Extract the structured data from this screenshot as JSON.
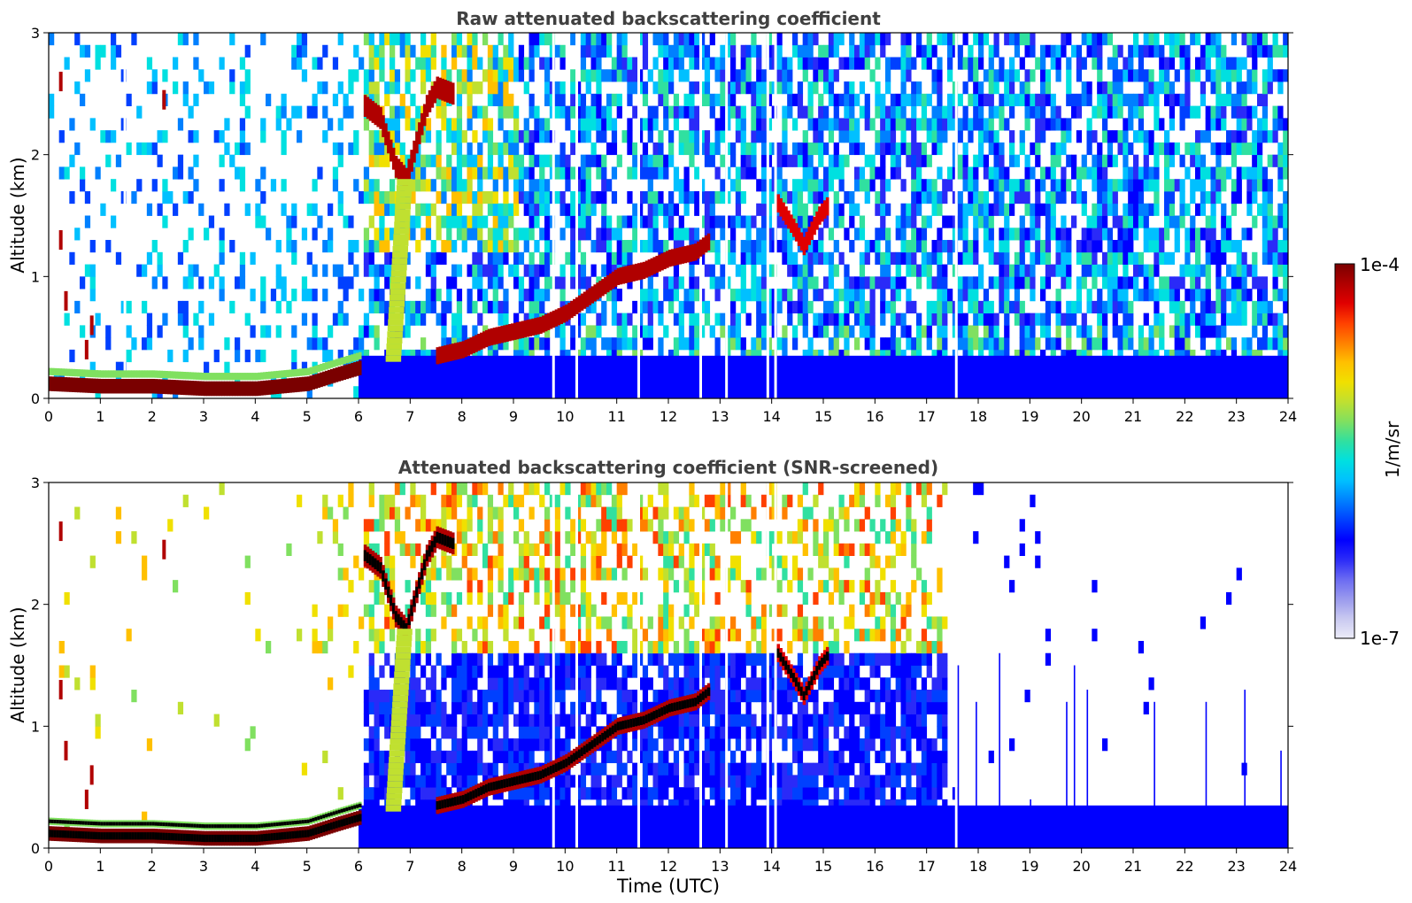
{
  "chart_data": [
    {
      "type": "heatmap",
      "title": "Raw attenuated backscattering coefficient",
      "xlabel": "",
      "ylabel": "Altitude (km)",
      "xlim": [
        0,
        24
      ],
      "ylim": [
        0,
        3
      ],
      "x_ticks": [
        "0",
        "1",
        "2",
        "3",
        "4",
        "5",
        "6",
        "7",
        "8",
        "9",
        "10",
        "11",
        "12",
        "13",
        "14",
        "15",
        "16",
        "17",
        "18",
        "19",
        "20",
        "21",
        "22",
        "23",
        "24"
      ],
      "y_ticks": [
        "0",
        "1",
        "2",
        "3"
      ],
      "features": {
        "boundary_layer": [
          [
            0,
            0.12
          ],
          [
            1,
            0.1
          ],
          [
            2,
            0.1
          ],
          [
            3,
            0.08
          ],
          [
            4,
            0.08
          ],
          [
            5,
            0.12
          ],
          [
            5.6,
            0.2
          ],
          [
            6.0,
            0.25
          ]
        ],
        "cloud_v_left": [
          [
            6.1,
            2.4
          ],
          [
            6.4,
            2.3
          ],
          [
            6.7,
            1.9
          ],
          [
            6.9,
            1.8
          ]
        ],
        "cloud_v_right": [
          [
            6.9,
            1.8
          ],
          [
            7.1,
            2.1
          ],
          [
            7.3,
            2.4
          ],
          [
            7.5,
            2.55
          ],
          [
            7.8,
            2.5
          ]
        ],
        "rising_layer": [
          [
            7.5,
            0.35
          ],
          [
            8.0,
            0.4
          ],
          [
            8.5,
            0.5
          ],
          [
            9.0,
            0.55
          ],
          [
            9.5,
            0.6
          ],
          [
            10.0,
            0.7
          ],
          [
            10.5,
            0.85
          ],
          [
            11.0,
            1.0
          ],
          [
            11.5,
            1.05
          ],
          [
            12.0,
            1.15
          ],
          [
            12.5,
            1.2
          ],
          [
            12.8,
            1.3
          ]
        ],
        "cloud_14_15": [
          [
            14.1,
            1.6
          ],
          [
            14.4,
            1.4
          ],
          [
            14.6,
            1.25
          ],
          [
            14.9,
            1.5
          ],
          [
            15.1,
            1.6
          ]
        ],
        "low_echo_right": [
          [
            16,
            0.25
          ],
          [
            18,
            0.22
          ],
          [
            20,
            0.2
          ],
          [
            22,
            0.22
          ],
          [
            23.5,
            0.3
          ]
        ]
      }
    },
    {
      "type": "heatmap",
      "title": "Attenuated backscattering coefficient (SNR-screened)",
      "xlabel": "Time (UTC)",
      "ylabel": "Altitude (km)",
      "xlim": [
        0,
        24
      ],
      "ylim": [
        0,
        3
      ],
      "x_ticks": [
        "0",
        "1",
        "2",
        "3",
        "4",
        "5",
        "6",
        "7",
        "8",
        "9",
        "10",
        "11",
        "12",
        "13",
        "14",
        "15",
        "16",
        "17",
        "18",
        "19",
        "20",
        "21",
        "22",
        "23",
        "24"
      ],
      "y_ticks": [
        "0",
        "1",
        "2",
        "3"
      ],
      "features": {
        "boundary_layer": [
          [
            0,
            0.12
          ],
          [
            1,
            0.1
          ],
          [
            2,
            0.1
          ],
          [
            3,
            0.08
          ],
          [
            4,
            0.08
          ],
          [
            5,
            0.12
          ],
          [
            5.6,
            0.2
          ],
          [
            6.0,
            0.25
          ]
        ],
        "cloud_v_left": [
          [
            6.1,
            2.4
          ],
          [
            6.4,
            2.3
          ],
          [
            6.7,
            1.9
          ],
          [
            6.9,
            1.8
          ]
        ],
        "cloud_v_right": [
          [
            6.9,
            1.8
          ],
          [
            7.1,
            2.1
          ],
          [
            7.3,
            2.4
          ],
          [
            7.5,
            2.55
          ],
          [
            7.8,
            2.5
          ]
        ],
        "rising_layer": [
          [
            7.5,
            0.35
          ],
          [
            8.0,
            0.4
          ],
          [
            8.5,
            0.5
          ],
          [
            9.0,
            0.55
          ],
          [
            9.5,
            0.6
          ],
          [
            10.0,
            0.7
          ],
          [
            10.5,
            0.85
          ],
          [
            11.0,
            1.0
          ],
          [
            11.5,
            1.05
          ],
          [
            12.0,
            1.15
          ],
          [
            12.5,
            1.2
          ],
          [
            12.8,
            1.3
          ]
        ],
        "cloud_14_15": [
          [
            14.1,
            1.6
          ],
          [
            14.4,
            1.4
          ],
          [
            14.6,
            1.25
          ],
          [
            14.9,
            1.5
          ],
          [
            15.1,
            1.6
          ]
        ],
        "screened_cut_time": 17.35,
        "low_echo_right_height": 0.27
      }
    }
  ],
  "colorbar": {
    "label": "1/m/sr",
    "max_label": "1e-4",
    "min_label": "1e-7",
    "stops": [
      "#ececf8",
      "#c8c8f0",
      "#9a9aee",
      "#6a6af2",
      "#2a2af8",
      "#0000ff",
      "#0040ff",
      "#0080ff",
      "#00c0ff",
      "#00e0e0",
      "#30e0a0",
      "#80e060",
      "#c0e030",
      "#f0e000",
      "#ffc000",
      "#ff8000",
      "#ff4000",
      "#e00000",
      "#b00000",
      "#7a0000"
    ]
  },
  "colors": {
    "title": "#404040",
    "axis": "#000000"
  }
}
